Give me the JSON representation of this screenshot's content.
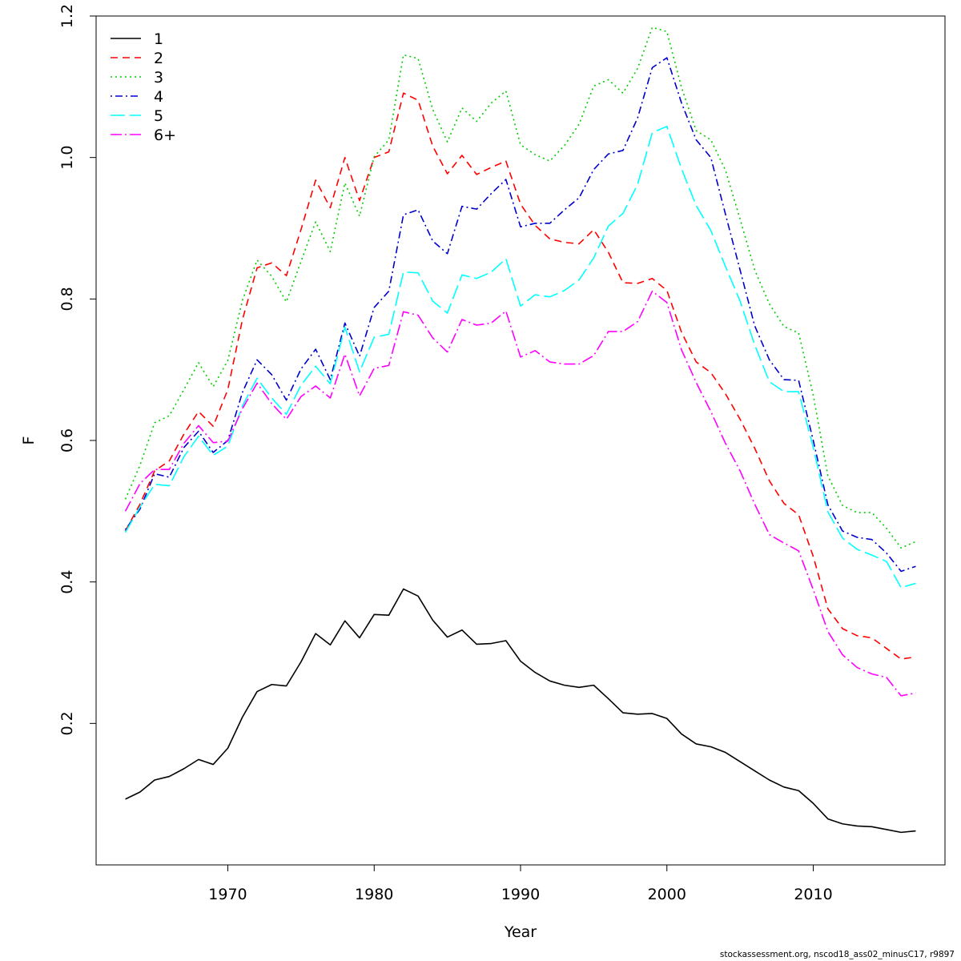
{
  "chart_data": {
    "type": "line",
    "title": "",
    "xlabel": "Year",
    "ylabel": "F",
    "xlim": [
      1961,
      2019
    ],
    "ylim": [
      0.0,
      1.2
    ],
    "x_ticks": [
      1970,
      1980,
      1990,
      2000,
      2010
    ],
    "y_ticks": [
      0.2,
      0.4,
      0.6,
      0.8,
      1.0,
      1.2
    ],
    "x_tick_labels": [
      "1970",
      "1980",
      "1990",
      "2000",
      "2010"
    ],
    "y_tick_labels": [
      "0.2",
      "0.4",
      "0.6",
      "0.8",
      "1.0",
      "1.2"
    ],
    "grid": false,
    "legend_position": "top-left",
    "x": [
      1963,
      1964,
      1965,
      1966,
      1967,
      1968,
      1969,
      1970,
      1971,
      1972,
      1973,
      1974,
      1975,
      1976,
      1977,
      1978,
      1979,
      1980,
      1981,
      1982,
      1983,
      1984,
      1985,
      1986,
      1987,
      1988,
      1989,
      1990,
      1991,
      1992,
      1993,
      1994,
      1995,
      1996,
      1997,
      1998,
      1999,
      2000,
      2001,
      2002,
      2003,
      2004,
      2005,
      2006,
      2007,
      2008,
      2009,
      2010,
      2011,
      2012,
      2013,
      2014,
      2015,
      2016,
      2017
    ],
    "series": [
      {
        "name": "1",
        "color": "#000000",
        "dash": "",
        "values": [
          0.093,
          0.103,
          0.12,
          0.125,
          0.136,
          0.149,
          0.142,
          0.165,
          0.209,
          0.245,
          0.255,
          0.253,
          0.287,
          0.327,
          0.311,
          0.345,
          0.321,
          0.354,
          0.353,
          0.39,
          0.38,
          0.346,
          0.322,
          0.332,
          0.312,
          0.313,
          0.317,
          0.288,
          0.272,
          0.26,
          0.254,
          0.251,
          0.254,
          0.235,
          0.215,
          0.213,
          0.214,
          0.207,
          0.185,
          0.171,
          0.167,
          0.159,
          0.146,
          0.133,
          0.12,
          0.11,
          0.105,
          0.087,
          0.065,
          0.058,
          0.055,
          0.054,
          0.05,
          0.046,
          0.048
        ]
      },
      {
        "name": "2",
        "color": "#ff0000",
        "dash": "9,6",
        "values": [
          0.472,
          0.51,
          0.557,
          0.571,
          0.609,
          0.641,
          0.62,
          0.672,
          0.771,
          0.844,
          0.851,
          0.833,
          0.898,
          0.968,
          0.929,
          1.0,
          0.939,
          1.0,
          1.008,
          1.091,
          1.081,
          1.016,
          0.977,
          1.003,
          0.976,
          0.986,
          0.995,
          0.934,
          0.904,
          0.885,
          0.88,
          0.878,
          0.898,
          0.866,
          0.823,
          0.822,
          0.829,
          0.812,
          0.753,
          0.711,
          0.696,
          0.666,
          0.63,
          0.589,
          0.543,
          0.511,
          0.495,
          0.436,
          0.362,
          0.334,
          0.324,
          0.321,
          0.306,
          0.291,
          0.294
        ]
      },
      {
        "name": "3",
        "color": "#00cd00",
        "dash": "2,4",
        "values": [
          0.517,
          0.565,
          0.625,
          0.635,
          0.672,
          0.71,
          0.676,
          0.713,
          0.798,
          0.855,
          0.832,
          0.796,
          0.853,
          0.909,
          0.867,
          0.964,
          0.917,
          1.001,
          1.025,
          1.145,
          1.14,
          1.068,
          1.022,
          1.07,
          1.051,
          1.077,
          1.094,
          1.018,
          1.004,
          0.995,
          1.017,
          1.047,
          1.101,
          1.11,
          1.091,
          1.126,
          1.184,
          1.178,
          1.099,
          1.038,
          1.025,
          0.982,
          0.913,
          0.841,
          0.793,
          0.761,
          0.752,
          0.664,
          0.55,
          0.508,
          0.498,
          0.498,
          0.476,
          0.448,
          0.457
        ]
      },
      {
        "name": "4",
        "color": "#0000cd",
        "dash": "2,4,9,4",
        "values": [
          0.474,
          0.503,
          0.553,
          0.548,
          0.59,
          0.613,
          0.583,
          0.6,
          0.668,
          0.714,
          0.693,
          0.657,
          0.701,
          0.729,
          0.686,
          0.766,
          0.719,
          0.788,
          0.811,
          0.919,
          0.926,
          0.882,
          0.864,
          0.931,
          0.927,
          0.949,
          0.969,
          0.902,
          0.907,
          0.907,
          0.926,
          0.943,
          0.983,
          1.005,
          1.01,
          1.056,
          1.127,
          1.141,
          1.077,
          1.025,
          1.0,
          0.92,
          0.841,
          0.762,
          0.714,
          0.686,
          0.685,
          0.6,
          0.509,
          0.472,
          0.463,
          0.46,
          0.441,
          0.415,
          0.422
        ]
      },
      {
        "name": "5",
        "color": "#00ffff",
        "dash": "18,6",
        "values": [
          0.47,
          0.506,
          0.538,
          0.536,
          0.577,
          0.606,
          0.579,
          0.592,
          0.649,
          0.688,
          0.66,
          0.637,
          0.678,
          0.705,
          0.68,
          0.76,
          0.697,
          0.746,
          0.75,
          0.838,
          0.837,
          0.797,
          0.78,
          0.834,
          0.829,
          0.838,
          0.857,
          0.79,
          0.806,
          0.803,
          0.812,
          0.827,
          0.858,
          0.903,
          0.921,
          0.962,
          1.035,
          1.044,
          0.984,
          0.932,
          0.897,
          0.846,
          0.797,
          0.735,
          0.683,
          0.669,
          0.669,
          0.59,
          0.499,
          0.462,
          0.446,
          0.438,
          0.429,
          0.392,
          0.398
        ]
      },
      {
        "name": "6+",
        "color": "#ff00ff",
        "dash": "14,4,2,4",
        "values": [
          0.5,
          0.539,
          0.559,
          0.559,
          0.596,
          0.621,
          0.597,
          0.599,
          0.645,
          0.681,
          0.652,
          0.63,
          0.662,
          0.677,
          0.66,
          0.722,
          0.663,
          0.702,
          0.706,
          0.782,
          0.777,
          0.745,
          0.725,
          0.771,
          0.763,
          0.766,
          0.783,
          0.718,
          0.727,
          0.711,
          0.708,
          0.708,
          0.72,
          0.754,
          0.754,
          0.768,
          0.811,
          0.795,
          0.728,
          0.682,
          0.641,
          0.596,
          0.557,
          0.51,
          0.467,
          0.455,
          0.444,
          0.389,
          0.33,
          0.297,
          0.279,
          0.27,
          0.265,
          0.239,
          0.243
        ]
      }
    ]
  },
  "footnote": "stockassessment.org, nscod18_ass02_minusC17, r9897"
}
